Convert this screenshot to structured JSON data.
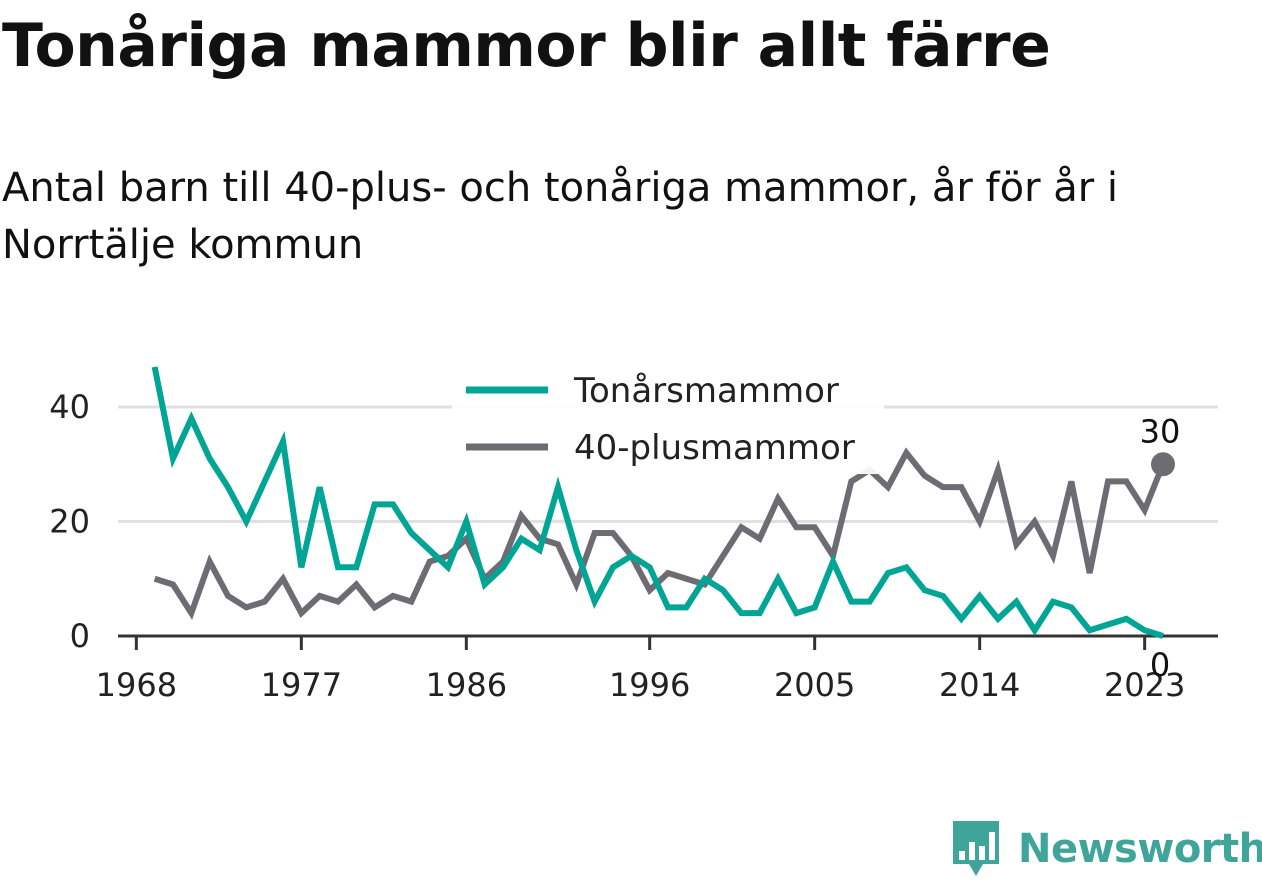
{
  "title": "Tonåriga mammor blir allt färre",
  "subtitle": "Antal barn till 40-plus- och tonåriga mammor, år för år i Norrtälje kommun",
  "brand": {
    "name": "Newsworthy",
    "icon": "newsworthy-chart-icon",
    "color": "#3fa49a"
  },
  "colors": {
    "teen": "#00a596",
    "plus40": "#6e6c73",
    "grid": "#e0e0e0",
    "axis": "#333333"
  },
  "chart_data": {
    "type": "line",
    "title": "",
    "xlabel": "",
    "ylabel": "",
    "x": [
      1969,
      1970,
      1971,
      1972,
      1973,
      1974,
      1975,
      1976,
      1977,
      1978,
      1979,
      1980,
      1981,
      1982,
      1983,
      1984,
      1985,
      1986,
      1987,
      1988,
      1989,
      1990,
      1991,
      1992,
      1993,
      1994,
      1995,
      1996,
      1997,
      1998,
      1999,
      2000,
      2001,
      2002,
      2003,
      2004,
      2005,
      2006,
      2007,
      2008,
      2009,
      2010,
      2011,
      2012,
      2013,
      2014,
      2015,
      2016,
      2017,
      2018,
      2019,
      2020,
      2021,
      2022,
      2023,
      2024
    ],
    "x_ticks": [
      "1968",
      "1977",
      "1986",
      "1996",
      "2005",
      "2014",
      "2023"
    ],
    "y_ticks": [
      "0",
      "20",
      "40"
    ],
    "ylim": [
      0,
      48
    ],
    "xlim": [
      1967,
      2027
    ],
    "grid": true,
    "legend_position": "top-center",
    "series": [
      {
        "name": "Tonårsmammor",
        "color": "#00a596",
        "values": [
          47,
          31,
          38,
          31,
          26,
          20,
          27,
          34,
          12,
          26,
          12,
          12,
          23,
          23,
          18,
          15,
          12,
          20,
          9,
          12,
          17,
          15,
          26,
          15,
          6,
          12,
          14,
          12,
          5,
          5,
          10,
          8,
          4,
          4,
          10,
          4,
          5,
          13,
          6,
          6,
          11,
          12,
          8,
          7,
          3,
          7,
          3,
          6,
          1,
          6,
          5,
          1,
          2,
          3,
          1,
          0
        ],
        "end_label": "0"
      },
      {
        "name": "40-plusmammor",
        "color": "#6e6c73",
        "values": [
          10,
          9,
          4,
          13,
          7,
          5,
          6,
          10,
          4,
          7,
          6,
          9,
          5,
          7,
          6,
          13,
          14,
          17,
          10,
          13,
          21,
          17,
          16,
          9,
          18,
          18,
          14,
          8,
          11,
          10,
          9,
          14,
          19,
          17,
          24,
          19,
          19,
          14,
          27,
          29,
          26,
          32,
          28,
          26,
          26,
          20,
          29,
          16,
          20,
          14,
          27,
          11,
          27,
          27,
          22,
          30
        ],
        "end_label": "30"
      }
    ]
  }
}
